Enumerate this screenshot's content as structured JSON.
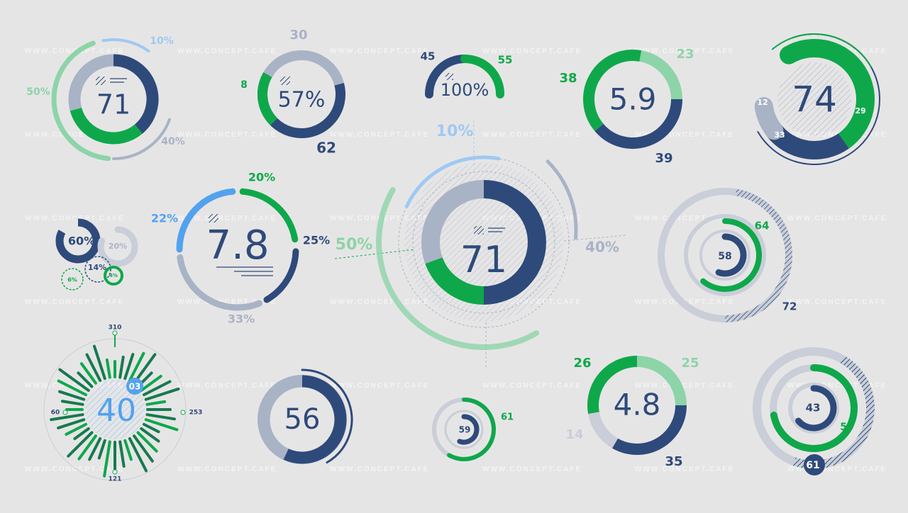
{
  "colors": {
    "navy": "#2e4a7a",
    "green": "#0ea84a",
    "lightgreen": "#8dd4a8",
    "gray": "#a9b3c6",
    "lightgray": "#c9ced8",
    "blue": "#52a2ee",
    "lightblue": "#9ec9f2"
  },
  "watermark": "WWW.CONCEPT.CAFE",
  "chart_data": [
    {
      "type": "donut",
      "center": "71",
      "segments": [
        {
          "label": "10%",
          "value": 10
        },
        {
          "label": "50%",
          "value": 50
        },
        {
          "label": "40%",
          "value": 40
        }
      ]
    },
    {
      "type": "donut",
      "center": "57%",
      "segments": [
        {
          "label": "30",
          "value": 30
        },
        {
          "label": "8",
          "value": 8
        },
        {
          "label": "62",
          "value": 62
        }
      ]
    },
    {
      "type": "semi-donut",
      "center": "100%",
      "segments": [
        {
          "label": "45",
          "value": 45
        },
        {
          "label": "55",
          "value": 55
        }
      ]
    },
    {
      "type": "donut",
      "center": "5.9",
      "segments": [
        {
          "label": "23",
          "value": 23
        },
        {
          "label": "38",
          "value": 38
        },
        {
          "label": "39",
          "value": 39
        }
      ]
    },
    {
      "type": "donut",
      "center": "74",
      "segments": [
        {
          "label": "12",
          "value": 12
        },
        {
          "label": "33",
          "value": 33
        },
        {
          "label": "29",
          "value": 29
        }
      ]
    },
    {
      "type": "bubbles",
      "bubbles": [
        {
          "label": "60%",
          "value": 60
        },
        {
          "label": "20%",
          "value": 20
        },
        {
          "label": "14%",
          "value": 14
        },
        {
          "label": "6%",
          "value": 6
        },
        {
          "label": "4%",
          "value": 4
        }
      ]
    },
    {
      "type": "donut",
      "center": "7.8",
      "segments": [
        {
          "label": "20%",
          "value": 20
        },
        {
          "label": "25%",
          "value": 25
        },
        {
          "label": "33%",
          "value": 33
        },
        {
          "label": "22%",
          "value": 22
        }
      ]
    },
    {
      "type": "donut",
      "center": "71",
      "segments": [
        {
          "label": "10%",
          "value": 10
        },
        {
          "label": "50%",
          "value": 50
        },
        {
          "label": "40%",
          "value": 40
        }
      ]
    },
    {
      "type": "concentric",
      "rings": [
        {
          "label": "72",
          "value": 72
        },
        {
          "label": "64",
          "value": 64
        },
        {
          "label": "58",
          "value": 58
        }
      ]
    },
    {
      "type": "radial-bars",
      "center": "40",
      "badge": "03",
      "ticks": [
        "310",
        "253",
        "121",
        "60"
      ]
    },
    {
      "type": "donut",
      "center": "56",
      "segments": [
        {
          "label": "56",
          "value": 56
        }
      ]
    },
    {
      "type": "concentric",
      "rings": [
        {
          "label": "61",
          "value": 61
        },
        {
          "label": "59",
          "value": 59
        }
      ]
    },
    {
      "type": "donut",
      "center": "4.8",
      "segments": [
        {
          "label": "25",
          "value": 25
        },
        {
          "label": "26",
          "value": 26
        },
        {
          "label": "14",
          "value": 14
        },
        {
          "label": "35",
          "value": 35
        }
      ]
    },
    {
      "type": "concentric",
      "rings": [
        {
          "label": "61",
          "value": 61
        },
        {
          "label": "59",
          "value": 59
        },
        {
          "label": "43",
          "value": 43
        }
      ]
    }
  ]
}
